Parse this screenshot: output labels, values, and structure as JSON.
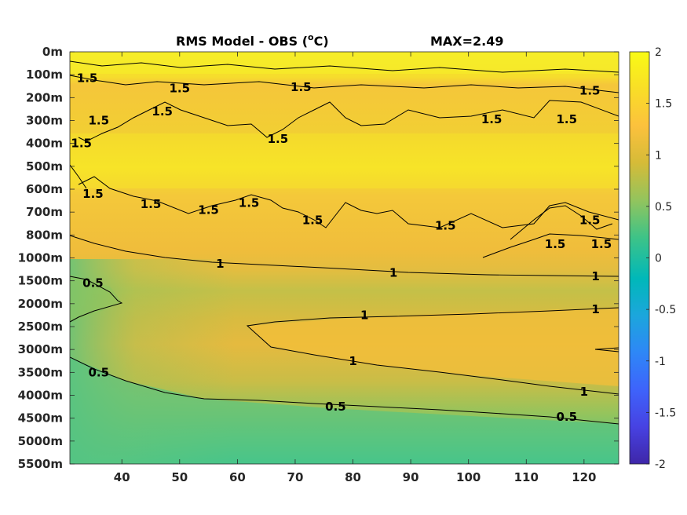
{
  "chart_data": {
    "type": "heatmap",
    "title": "RMS Model - OBS (",
    "title_unit_sup": "o",
    "title_unit_end": "C)",
    "max_label": "MAX=2.49",
    "x_ticks": [
      40,
      50,
      60,
      70,
      80,
      90,
      100,
      110,
      120
    ],
    "xlim": [
      31,
      126
    ],
    "y_ticks": [
      "0m",
      "100m",
      "200m",
      "300m",
      "400m",
      "500m",
      "600m",
      "700m",
      "800m",
      "1000m",
      "1500m",
      "2000m",
      "2500m",
      "3000m",
      "3500m",
      "4000m",
      "4500m",
      "5000m",
      "5500m"
    ],
    "colorbar": {
      "ticks": [
        2,
        1.5,
        1,
        0.5,
        0,
        -0.5,
        -1,
        -1.5,
        -2
      ],
      "range": [
        -2,
        2
      ],
      "colormap": "parula",
      "colors": [
        "#3e26a8",
        "#4742e2",
        "#3e63fb",
        "#2e87f7",
        "#1ca6dc",
        "#00b8b9",
        "#3ec387",
        "#93c45d",
        "#d5bb38",
        "#fcc13d",
        "#f9de27",
        "#f9fb15"
      ]
    },
    "contour_labels": [
      {
        "text": "1",
        "x": 57,
        "y": 9.25
      },
      {
        "text": "1",
        "x": 87,
        "y": 9.65
      },
      {
        "text": "1",
        "x": 122,
        "y": 9.8
      },
      {
        "text": "1",
        "x": 82,
        "y": 11.5
      },
      {
        "text": "1",
        "x": 122,
        "y": 11.25
      },
      {
        "text": "1",
        "x": 80,
        "y": 13.5
      },
      {
        "text": "1",
        "x": 120,
        "y": 14.85
      },
      {
        "text": "0.5",
        "x": 35,
        "y": 10.1
      },
      {
        "text": "0.5",
        "x": 36,
        "y": 14.0
      },
      {
        "text": "0.5",
        "x": 77,
        "y": 15.5
      },
      {
        "text": "0.5",
        "x": 117,
        "y": 15.95
      },
      {
        "text": "1.5",
        "x": 34,
        "y": 1.15
      },
      {
        "text": "1.5",
        "x": 71,
        "y": 1.55
      },
      {
        "text": "1.5",
        "x": 50,
        "y": 1.6
      },
      {
        "text": "1.5",
        "x": 47,
        "y": 2.6
      },
      {
        "text": "1.5",
        "x": 36,
        "y": 3.0
      },
      {
        "text": "1.5",
        "x": 67,
        "y": 3.8
      },
      {
        "text": "1.5",
        "x": 33,
        "y": 4.0
      },
      {
        "text": "1.5",
        "x": 35,
        "y": 6.2
      },
      {
        "text": "1.5",
        "x": 45,
        "y": 6.65
      },
      {
        "text": "1.5",
        "x": 55,
        "y": 6.9
      },
      {
        "text": "1.5",
        "x": 62,
        "y": 6.6
      },
      {
        "text": "1.5",
        "x": 73,
        "y": 7.35
      },
      {
        "text": "1.5",
        "x": 96,
        "y": 7.6
      },
      {
        "text": "1.5",
        "x": 115,
        "y": 8.4
      },
      {
        "text": "1.5",
        "x": 123,
        "y": 8.4
      },
      {
        "text": "1.5",
        "x": 121,
        "y": 7.35
      },
      {
        "text": "1.5",
        "x": 104,
        "y": 2.95
      },
      {
        "text": "1.5",
        "x": 117,
        "y": 2.95
      },
      {
        "text": "1.5",
        "x": 121,
        "y": 1.7
      }
    ]
  }
}
